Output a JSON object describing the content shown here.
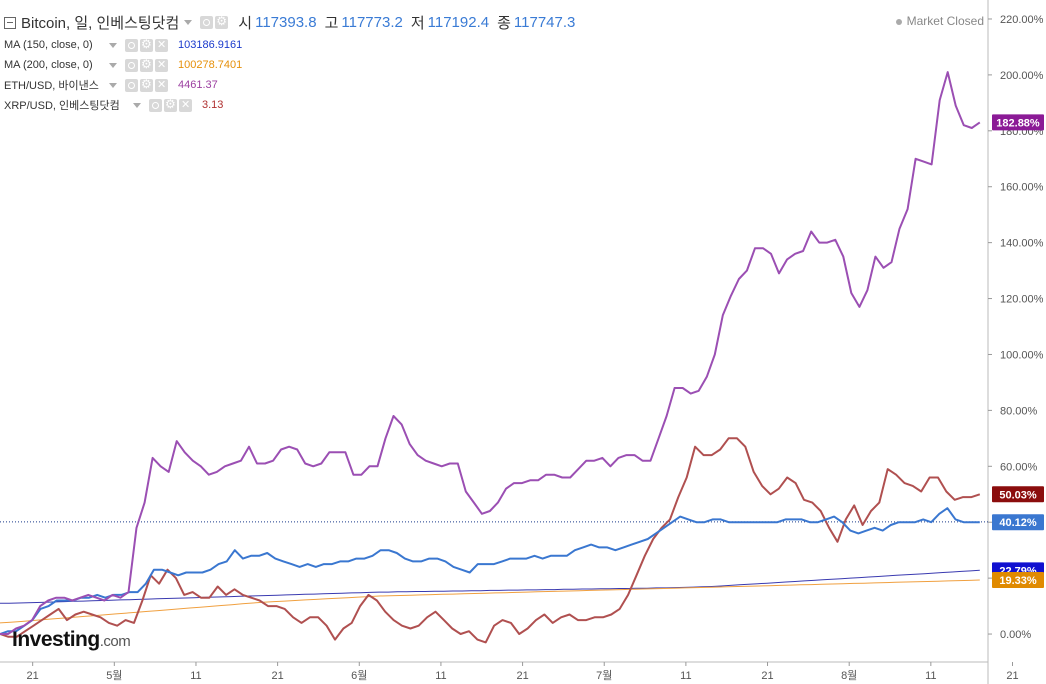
{
  "legend": {
    "main": {
      "title": "Bitcoin, 일, 인베스팅닷컴",
      "open_label": "시",
      "open_value": "117393.8",
      "high_label": "고",
      "high_value": "117773.2",
      "low_label": "저",
      "low_value": "117192.4",
      "close_label": "종",
      "close_value": "117747.3"
    },
    "rows": [
      {
        "label": "MA (150, close, 0)",
        "value": "103186.9161",
        "color": "#1a3acc"
      },
      {
        "label": "MA (200, close, 0)",
        "value": "100278.7401",
        "color": "#e6900a"
      },
      {
        "label": "ETH/USD, 바이낸스",
        "value": "4461.37",
        "color": "#9b3fa0"
      },
      {
        "label": "XRP/USD, 인베스팅닷컴",
        "value": "3.13",
        "color": "#b03030"
      }
    ]
  },
  "market_status": "Market Closed",
  "logo": {
    "name": "Investing",
    "suffix": ".com"
  },
  "chart_data": {
    "type": "line",
    "ylim": [
      -10,
      225
    ],
    "yticks": [
      0,
      20,
      40,
      60,
      80,
      100,
      120,
      140,
      160,
      180,
      200,
      220
    ],
    "ytick_labels": [
      "0.00%",
      "20.00%",
      "40.00%",
      "60.00%",
      "80.00%",
      "100.00%",
      "120.00%",
      "140.00%",
      "160.00%",
      "180.00%",
      "200.00%",
      "220.00%"
    ],
    "xlim": [
      0,
      121
    ],
    "xticks": [
      {
        "x": 4,
        "label": "21"
      },
      {
        "x": 14,
        "label": "5월"
      },
      {
        "x": 24,
        "label": "11"
      },
      {
        "x": 34,
        "label": "21"
      },
      {
        "x": 44,
        "label": "6월"
      },
      {
        "x": 54,
        "label": "11"
      },
      {
        "x": 64,
        "label": "21"
      },
      {
        "x": 74,
        "label": "7월"
      },
      {
        "x": 84,
        "label": "11"
      },
      {
        "x": 94,
        "label": "21"
      },
      {
        "x": 104,
        "label": "8월"
      },
      {
        "x": 114,
        "label": "11"
      },
      {
        "x": 124,
        "label": "21"
      }
    ],
    "reference_line": 40.12,
    "series": [
      {
        "name": "ETH/USD, 바이낸스",
        "color": "#9b4fb3",
        "width": 2,
        "last_label": "182.88%",
        "label_color": "#8b1a96",
        "values": [
          0,
          0,
          2,
          3,
          5,
          10,
          12,
          13,
          13,
          12,
          13,
          14,
          13,
          12,
          14,
          13,
          15,
          38,
          47,
          63,
          60,
          58,
          69,
          65,
          62,
          60,
          57,
          58,
          60,
          61,
          62,
          67,
          61,
          61,
          62,
          66,
          67,
          66,
          61,
          60,
          61,
          65,
          65,
          65,
          57,
          57,
          60,
          60,
          70,
          78,
          75,
          68,
          64,
          62,
          61,
          60,
          61,
          61,
          51,
          47,
          43,
          44,
          47,
          52,
          54,
          54,
          55,
          55,
          57,
          57,
          56,
          56,
          59,
          62,
          62,
          63,
          60,
          63,
          64,
          64,
          62,
          62,
          70,
          78,
          88,
          88,
          86,
          87,
          92,
          100,
          114,
          121,
          127,
          130,
          138,
          138,
          136,
          129,
          134,
          136,
          137,
          144,
          140,
          140,
          141,
          135,
          122,
          117,
          123,
          135,
          131,
          133,
          145,
          152,
          170,
          169,
          168,
          191,
          201,
          189,
          182,
          181,
          183
        ]
      },
      {
        "name": "XRP/USD, 인베스팅닷컴",
        "color": "#b05050",
        "width": 2,
        "last_label": "50.03%",
        "label_color": "#8b0d0d",
        "values": [
          0,
          -1,
          -1,
          1,
          3,
          5,
          7,
          9,
          5,
          7,
          8,
          7,
          6,
          4,
          3,
          5,
          4,
          12,
          21,
          18,
          23,
          20,
          14,
          15,
          13,
          13,
          17,
          14,
          16,
          14,
          13,
          12,
          10,
          10,
          9,
          6,
          4,
          6,
          6,
          3,
          -2,
          2,
          4,
          10,
          14,
          12,
          8,
          5,
          3,
          2,
          3,
          6,
          8,
          5,
          2,
          0,
          1,
          -2,
          -3,
          3,
          5,
          4,
          0,
          2,
          5,
          7,
          4,
          6,
          7,
          5,
          5,
          6,
          6,
          7,
          9,
          14,
          21,
          28,
          34,
          38,
          41,
          49,
          56,
          67,
          64,
          64,
          66,
          70,
          70,
          67,
          58,
          53,
          50,
          52,
          56,
          54,
          48,
          47,
          44,
          38,
          33,
          41,
          46,
          39,
          44,
          47,
          59,
          57,
          54,
          53,
          51,
          56,
          56,
          51,
          48,
          49,
          49,
          50
        ]
      },
      {
        "name": "Bitcoin, 일, 인베스팅닷컴",
        "color": "#3a77d0",
        "width": 2,
        "last_label": "40.12%",
        "label_color": "#3a77d0",
        "values": [
          0,
          1,
          1,
          3,
          5,
          9,
          10,
          12,
          12,
          12,
          13,
          13,
          14,
          13,
          14,
          14,
          15,
          15,
          18,
          23,
          23,
          22,
          21,
          22,
          22,
          22,
          23,
          25,
          26,
          30,
          27,
          28,
          28,
          29,
          27,
          26,
          25,
          24,
          25,
          24,
          25,
          25,
          26,
          26,
          27,
          27,
          28,
          30,
          30,
          29,
          27,
          26,
          26,
          27,
          27,
          26,
          24,
          23,
          22,
          25,
          25,
          25,
          26,
          27,
          27,
          27,
          28,
          27,
          28,
          28,
          28,
          30,
          31,
          32,
          31,
          31,
          30,
          31,
          32,
          33,
          34,
          36,
          38,
          40,
          42,
          41,
          40,
          40,
          41,
          41,
          40,
          40,
          40,
          40,
          40,
          40,
          40,
          41,
          41,
          41,
          40,
          40,
          41,
          42,
          40,
          37,
          36,
          37,
          38,
          37,
          39,
          40,
          40,
          40,
          41,
          40,
          43,
          45,
          41,
          40,
          40,
          40
        ]
      },
      {
        "name": "MA (150, close, 0)",
        "color": "#3a3ab0",
        "width": 1,
        "last_label": "22.79%",
        "label_color": "#1010d0",
        "values": [
          11,
          11,
          11.1,
          11.2,
          11.3,
          11.4,
          11.5,
          11.6,
          11.7,
          11.8,
          11.9,
          12,
          12.1,
          12.2,
          12.3,
          12.4,
          12.5,
          12.6,
          12.7,
          12.8,
          12.9,
          13,
          13.1,
          13.2,
          13.3,
          13.4,
          13.5,
          13.6,
          13.7,
          13.8,
          13.9,
          14,
          14.1,
          14.2,
          14.3,
          14.4,
          14.5,
          14.6,
          14.7,
          14.8,
          14.9,
          15,
          15,
          15.1,
          15.1,
          15.2,
          15.2,
          15.3,
          15.3,
          15.4,
          15.4,
          15.5,
          15.5,
          15.6,
          15.6,
          15.7,
          15.7,
          15.8,
          15.8,
          15.9,
          15.9,
          16,
          16,
          16.1,
          16.1,
          16.2,
          16.2,
          16.3,
          16.3,
          16.4,
          16.4,
          16.5,
          16.5,
          16.6,
          16.7,
          16.8,
          16.9,
          17,
          17.2,
          17.4,
          17.6,
          17.8,
          18,
          18.2,
          18.4,
          18.6,
          18.8,
          19,
          19.2,
          19.4,
          19.6,
          19.8,
          20,
          20.2,
          20.4,
          20.6,
          20.8,
          21,
          21.2,
          21.4,
          21.6,
          21.8,
          22,
          22.2,
          22.4,
          22.6,
          22.79
        ]
      },
      {
        "name": "MA (200, close, 0)",
        "color": "#f0a040",
        "width": 1,
        "last_label": "19.33%",
        "label_color": "#e08a00",
        "values": [
          4,
          4.2,
          4.5,
          4.8,
          5.1,
          5.4,
          5.7,
          6,
          6.3,
          6.6,
          6.9,
          7.2,
          7.5,
          7.8,
          8.1,
          8.4,
          8.7,
          9,
          9.3,
          9.6,
          9.9,
          10.2,
          10.5,
          10.8,
          11.1,
          11.4,
          11.6,
          11.8,
          12,
          12.2,
          12.4,
          12.6,
          12.8,
          13,
          13.2,
          13.4,
          13.6,
          13.7,
          13.8,
          13.9,
          14,
          14.1,
          14.2,
          14.3,
          14.4,
          14.5,
          14.6,
          14.7,
          14.8,
          14.9,
          15,
          15.1,
          15.2,
          15.3,
          15.4,
          15.5,
          15.6,
          15.7,
          15.8,
          15.9,
          16,
          16.1,
          16.2,
          16.3,
          16.4,
          16.5,
          16.6,
          16.7,
          16.8,
          16.9,
          17,
          17.1,
          17.2,
          17.3,
          17.4,
          17.5,
          17.6,
          17.7,
          17.8,
          17.9,
          18,
          18.1,
          18.2,
          18.3,
          18.4,
          18.5,
          18.6,
          18.7,
          18.8,
          18.9,
          19,
          19.1,
          19.2,
          19.33
        ]
      }
    ]
  }
}
